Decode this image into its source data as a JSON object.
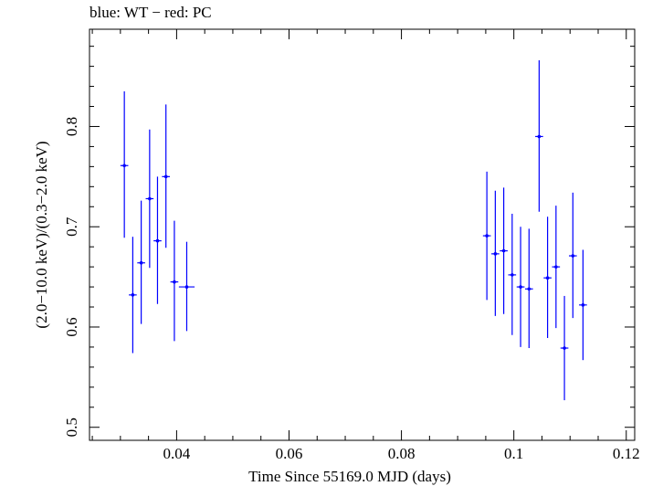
{
  "chart_data": {
    "type": "scatter",
    "title": "blue: WT − red: PC",
    "xlabel": "Time Since 55169.0 MJD (days)",
    "ylabel": "(2.0−10.0 keV)/(0.3−2.0 keV)",
    "xlim": [
      0.0245,
      0.1215
    ],
    "ylim": [
      0.487,
      0.897
    ],
    "xticks": [
      0.04,
      0.06,
      0.08,
      0.1,
      0.12
    ],
    "xtick_labels": [
      "0.04",
      "0.06",
      "0.08",
      "0.1",
      "0.12"
    ],
    "yticks": [
      0.5,
      0.6,
      0.7,
      0.8
    ],
    "ytick_labels": [
      "0.5",
      "0.6",
      "0.7",
      "0.8"
    ],
    "grid": false,
    "series": [
      {
        "color": "#0000ff",
        "points": [
          {
            "x": 0.0307,
            "y": 0.761,
            "xerr": 0.0007,
            "ylo": 0.689,
            "yhi": 0.835
          },
          {
            "x": 0.0322,
            "y": 0.632,
            "xerr": 0.0007,
            "ylo": 0.574,
            "yhi": 0.69
          },
          {
            "x": 0.0337,
            "y": 0.664,
            "xerr": 0.0007,
            "ylo": 0.603,
            "yhi": 0.726
          },
          {
            "x": 0.0352,
            "y": 0.728,
            "xerr": 0.0007,
            "ylo": 0.659,
            "yhi": 0.797
          },
          {
            "x": 0.0366,
            "y": 0.686,
            "xerr": 0.0007,
            "ylo": 0.623,
            "yhi": 0.75
          },
          {
            "x": 0.0381,
            "y": 0.75,
            "xerr": 0.0007,
            "ylo": 0.679,
            "yhi": 0.822
          },
          {
            "x": 0.0396,
            "y": 0.645,
            "xerr": 0.0007,
            "ylo": 0.586,
            "yhi": 0.706
          },
          {
            "x": 0.0418,
            "y": 0.64,
            "xerr": 0.0014,
            "ylo": 0.596,
            "yhi": 0.685
          },
          {
            "x": 0.0952,
            "y": 0.691,
            "xerr": 0.0007,
            "ylo": 0.627,
            "yhi": 0.755
          },
          {
            "x": 0.0967,
            "y": 0.673,
            "xerr": 0.0007,
            "ylo": 0.611,
            "yhi": 0.736
          },
          {
            "x": 0.0982,
            "y": 0.676,
            "xerr": 0.0007,
            "ylo": 0.613,
            "yhi": 0.739
          },
          {
            "x": 0.0997,
            "y": 0.652,
            "xerr": 0.0007,
            "ylo": 0.592,
            "yhi": 0.713
          },
          {
            "x": 0.1012,
            "y": 0.64,
            "xerr": 0.0007,
            "ylo": 0.58,
            "yhi": 0.7
          },
          {
            "x": 0.1027,
            "y": 0.638,
            "xerr": 0.0007,
            "ylo": 0.579,
            "yhi": 0.698
          },
          {
            "x": 0.1045,
            "y": 0.79,
            "xerr": 0.0007,
            "ylo": 0.715,
            "yhi": 0.866
          },
          {
            "x": 0.106,
            "y": 0.649,
            "xerr": 0.0007,
            "ylo": 0.589,
            "yhi": 0.71
          },
          {
            "x": 0.1075,
            "y": 0.66,
            "xerr": 0.0007,
            "ylo": 0.599,
            "yhi": 0.721
          },
          {
            "x": 0.109,
            "y": 0.579,
            "xerr": 0.0007,
            "ylo": 0.527,
            "yhi": 0.631
          },
          {
            "x": 0.1105,
            "y": 0.671,
            "xerr": 0.0007,
            "ylo": 0.609,
            "yhi": 0.734
          },
          {
            "x": 0.1123,
            "y": 0.622,
            "xerr": 0.0007,
            "ylo": 0.567,
            "yhi": 0.677
          }
        ]
      }
    ]
  }
}
